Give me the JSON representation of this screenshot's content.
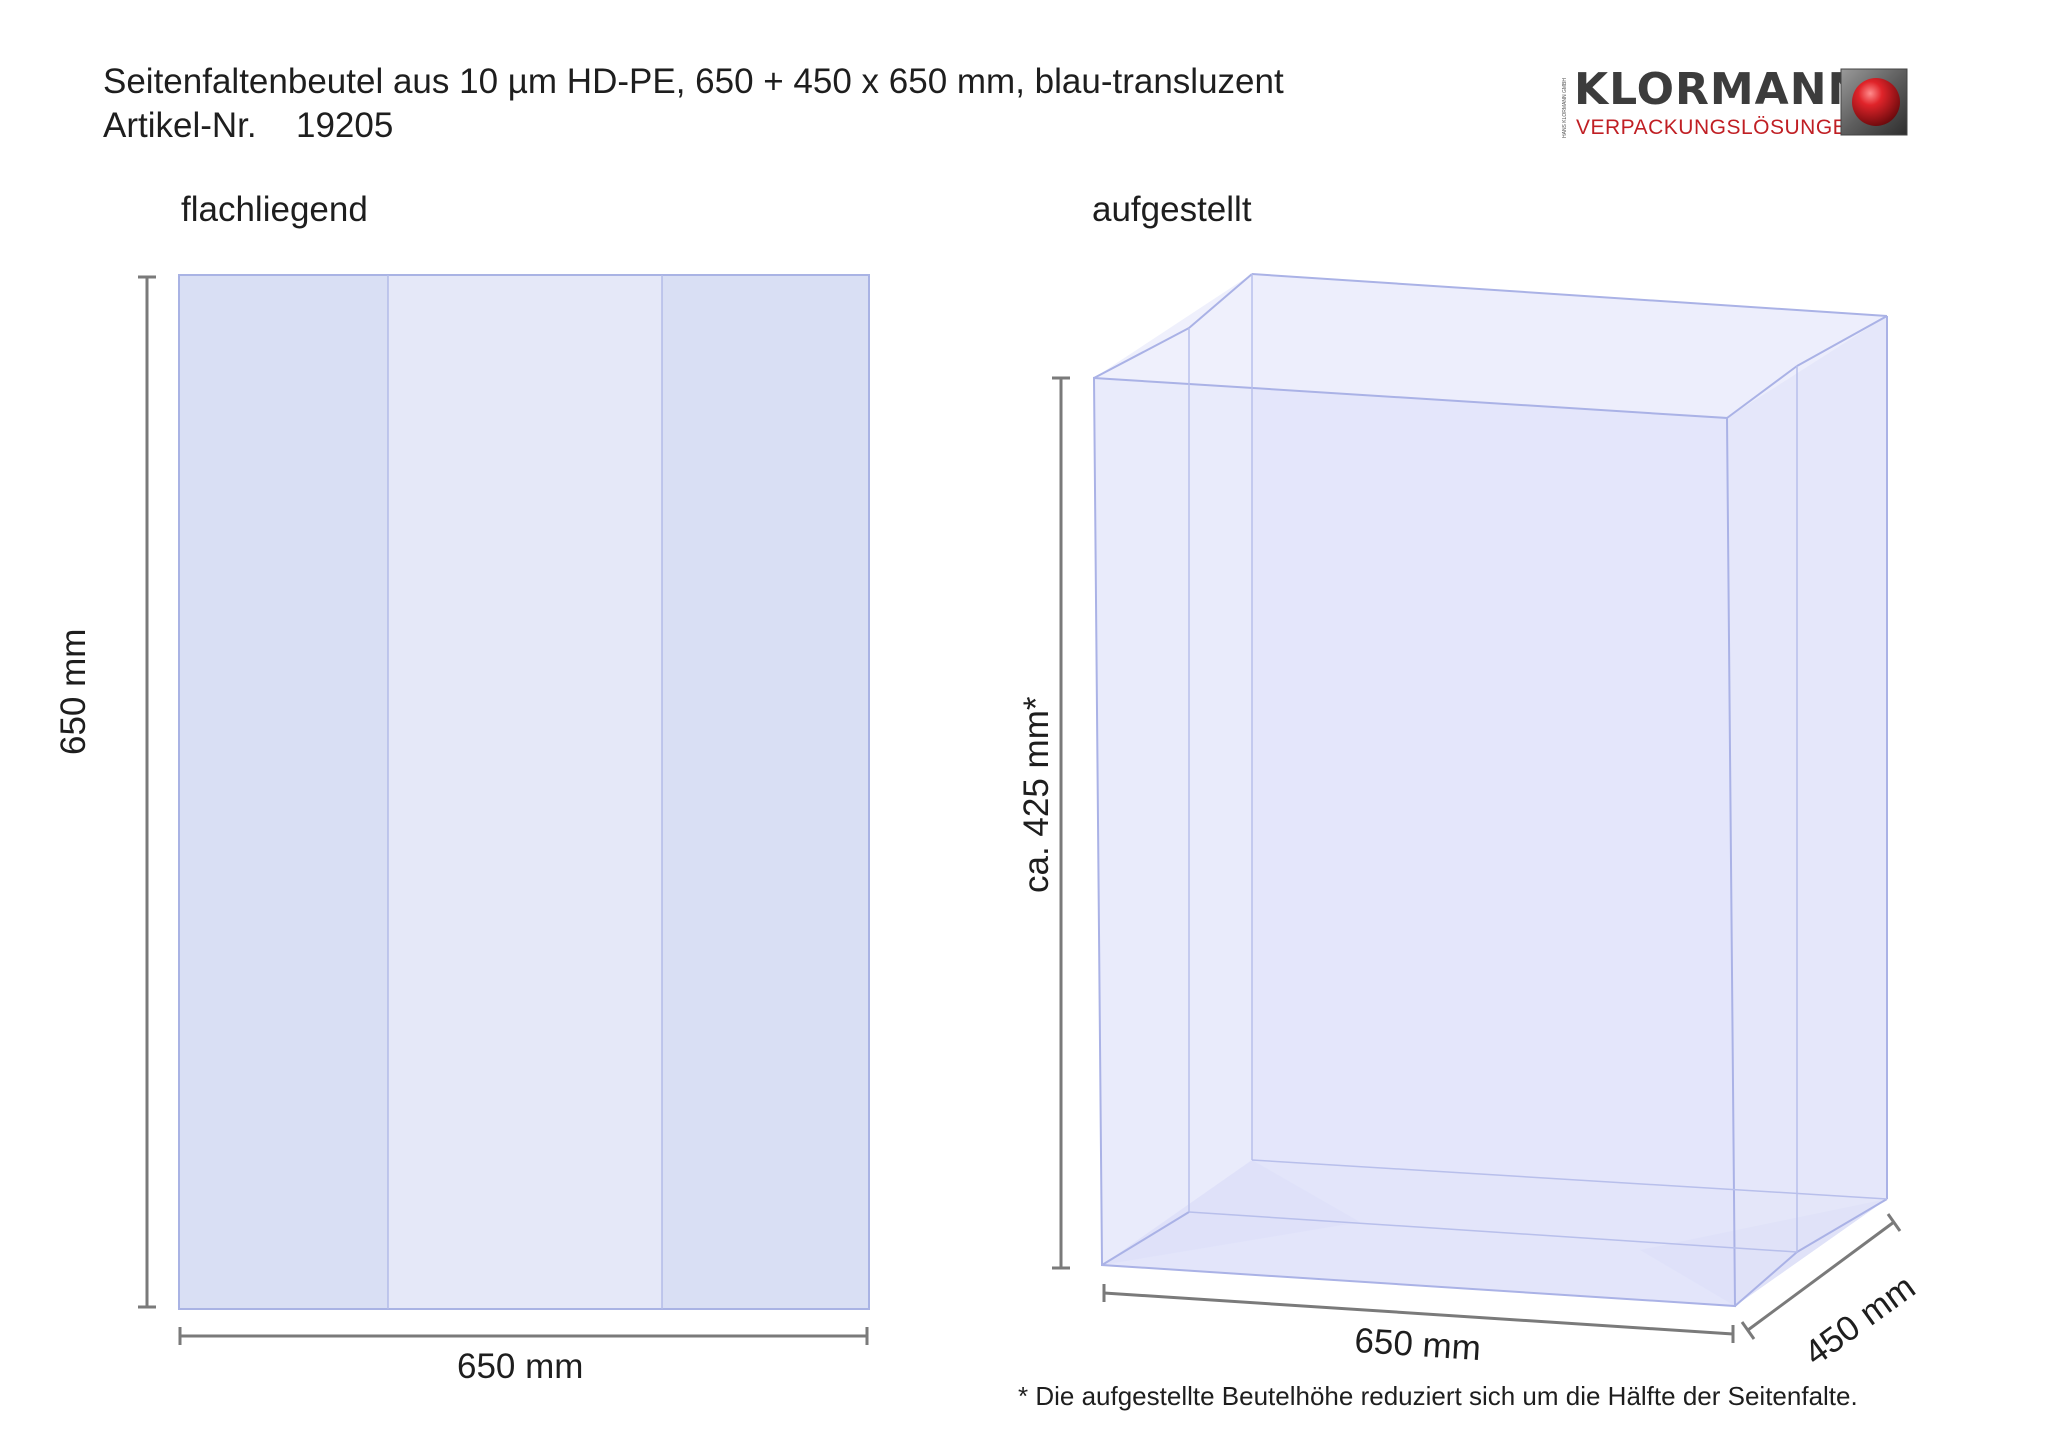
{
  "header": {
    "title": "Seitenfaltenbeutel aus 10 µm HD-PE, 650 + 450 x 650 mm, blau-transluzent",
    "article_label": "Artikel-Nr.",
    "article_number": "19205"
  },
  "logo": {
    "name": "KLORMANN",
    "tagline": "VERPACKUNGSLÖSUNGEN",
    "legal_tiny": "HANS KLORMANN GMBH",
    "icon": "red-sphere-icon",
    "accent_color": "#c01f24"
  },
  "views": {
    "flat": {
      "label": "flachliegend",
      "height_label": "650 mm",
      "width_label": "650 mm"
    },
    "standing": {
      "label": "aufgestellt",
      "height_label": "ca. 425 mm*",
      "width_label": "650 mm",
      "depth_label": "450 mm"
    }
  },
  "footnote": "* Die aufgestellte Beutelhöhe reduziert sich um die Hälfte der Seitenfalte.",
  "colors": {
    "bag_fill": "#e5e8f8",
    "gusset_fill": "#d9dff4",
    "bag_edge": "#a9b3e4",
    "dimension_line": "#7a7a7a"
  }
}
